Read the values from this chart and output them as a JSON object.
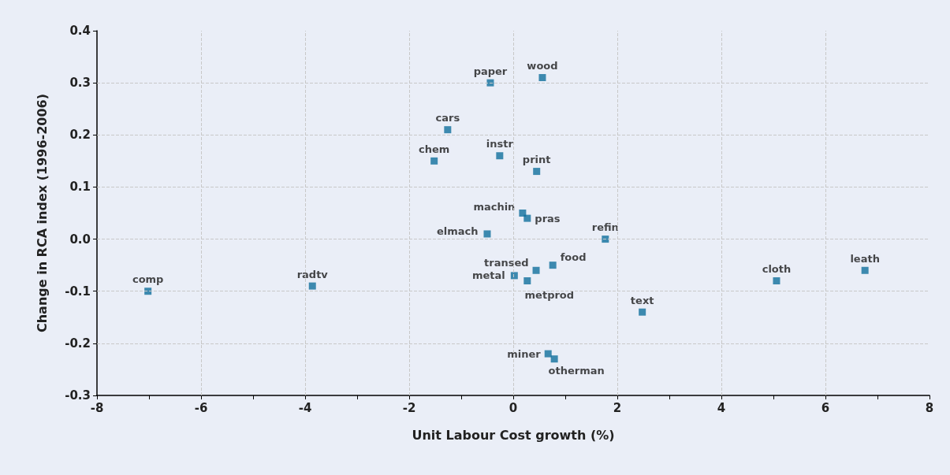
{
  "chart_data": {
    "type": "scatter",
    "xlabel": "Unit Labour Cost growth (%)",
    "ylabel": "Change in RCA index (1996-2006)",
    "series": [
      {
        "color": "#106f9c",
        "x": [
          -7.02,
          -3.86,
          -1.52,
          -1.26,
          -0.44,
          0.56,
          -0.26,
          0.45,
          0.18,
          0.27,
          -0.5,
          1.77,
          0.44,
          0.76,
          0.02,
          0.27,
          2.48,
          5.06,
          6.76,
          0.67,
          0.79
        ],
        "values": [
          -0.1,
          -0.09,
          0.15,
          0.21,
          0.3,
          0.31,
          0.16,
          0.13,
          0.05,
          0.04,
          0.01,
          0,
          -0.06,
          -0.05,
          -0.07,
          -0.08,
          -0.14,
          -0.08,
          -0.06,
          -0.22,
          -0.23
        ]
      }
    ],
    "annotations": [
      {
        "text": "comp",
        "x": -7.02,
        "y": -0.1
      },
      {
        "text": "radtv",
        "x": -3.86,
        "y": -0.09
      },
      {
        "text": "chem",
        "x": -1.52,
        "y": 0.15
      },
      {
        "text": "cars",
        "x": -1.26,
        "y": 0.21
      },
      {
        "text": "paper",
        "x": -0.44,
        "y": 0.3
      },
      {
        "text": "wood",
        "x": 0.56,
        "y": 0.31
      },
      {
        "text": "instr",
        "x": -0.26,
        "y": 0.16
      },
      {
        "text": "print",
        "x": 0.45,
        "y": 0.13
      },
      {
        "text": "machin",
        "x": 0.18,
        "y": 0.05
      },
      {
        "text": "pras",
        "x": 0.27,
        "y": 0.04
      },
      {
        "text": "elmach",
        "x": -0.5,
        "y": 0.01
      },
      {
        "text": "refin",
        "x": 1.77,
        "y": 0
      },
      {
        "text": "transed",
        "x": 0.44,
        "y": -0.06
      },
      {
        "text": "food",
        "x": 0.76,
        "y": -0.05
      },
      {
        "text": "metal",
        "x": 0.02,
        "y": -0.07
      },
      {
        "text": "metprod",
        "x": 0.27,
        "y": -0.08
      },
      {
        "text": "text",
        "x": 2.48,
        "y": -0.14
      },
      {
        "text": "cloth",
        "x": 5.06,
        "y": -0.08
      },
      {
        "text": "leath",
        "x": 6.76,
        "y": -0.06
      },
      {
        "text": "miner",
        "x": 0.67,
        "y": -0.22
      },
      {
        "text": "otherman",
        "x": 0.79,
        "y": -0.23
      }
    ],
    "xlim": [
      -8,
      8
    ],
    "xticks": [
      -8,
      {
        "value": -7,
        "label": null
      },
      -6,
      {
        "value": -5,
        "label": null
      },
      -4,
      {
        "value": -3,
        "label": null
      },
      -2,
      {
        "value": -1,
        "label": null
      },
      0,
      {
        "value": 1,
        "label": null
      },
      2,
      {
        "value": 3,
        "label": null
      },
      4,
      {
        "value": 5,
        "label": null
      },
      6,
      {
        "value": 7,
        "label": null
      },
      8
    ],
    "ylim": [
      -0.3,
      0.4
    ],
    "yticks": [
      -0.3,
      -0.2,
      -0.1,
      {
        "value": 0,
        "label": "0.0"
      },
      0.1,
      0.2,
      0.3,
      0.4
    ],
    "grid": true,
    "marker": "square"
  }
}
